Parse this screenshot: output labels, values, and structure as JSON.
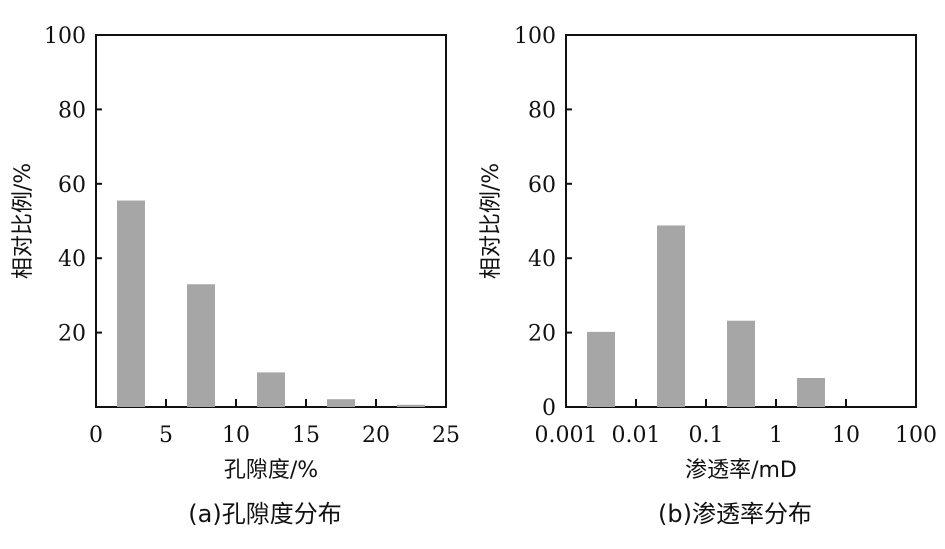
{
  "bar_color": "#a6a6a6",
  "chart_data": [
    {
      "type": "bar",
      "xlabel": "孔隙度/%",
      "ylabel": "相对比例/%",
      "caption": "(a)孔隙度分布",
      "xlim": [
        0,
        25
      ],
      "ylim": [
        0,
        100
      ],
      "x_ticks": [
        "0",
        "5",
        "10",
        "15",
        "20",
        "25"
      ],
      "y_ticks": [
        "20",
        "40",
        "60",
        "80",
        "100"
      ],
      "categories": [
        "0-5",
        "5-10",
        "10-15",
        "15-20",
        "20-25"
      ],
      "values": [
        55.5,
        33,
        9.3,
        2.1,
        0.6
      ]
    },
    {
      "type": "bar",
      "xlabel": "渗透率/mD",
      "ylabel": "相对比例/%",
      "caption": "(b)渗透率分布",
      "x_scale": "log",
      "xlim": [
        0.001,
        100
      ],
      "ylim": [
        0,
        100
      ],
      "x_ticks": [
        "0.001",
        "0.01",
        "0.1",
        "1",
        "10",
        "100"
      ],
      "y_ticks": [
        "0",
        "20",
        "40",
        "60",
        "80",
        "100"
      ],
      "categories": [
        "0.001-0.01",
        "0.01-0.1",
        "0.1-1",
        "1-10",
        "10-100"
      ],
      "values": [
        20.2,
        48.8,
        23.2,
        7.8,
        0
      ]
    }
  ]
}
